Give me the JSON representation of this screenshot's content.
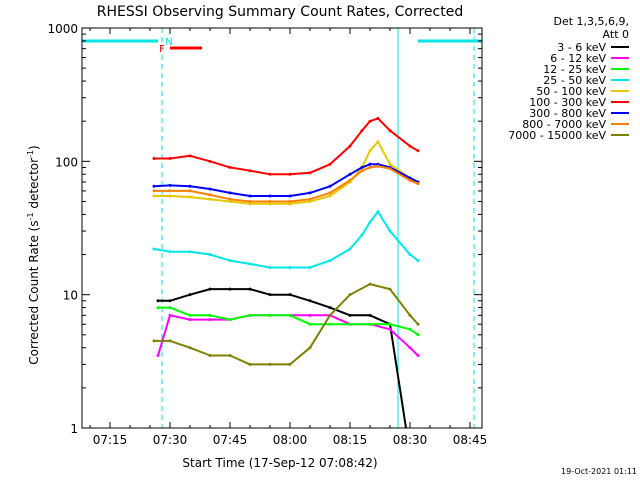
{
  "page": {
    "footer_date": "19-Oct-2021 01:11"
  },
  "chart_data": {
    "type": "line",
    "title": "RHESSI Observing Summary Count Rates, Corrected",
    "xlabel": "Start Time (17-Sep-12 07:08:42)",
    "ylabel_main": "Corrected Count Rate (s",
    "ylabel_sup1": "-1",
    "ylabel_mid": " detector",
    "ylabel_sup2": "-1",
    "ylabel_end": ")",
    "y_scale": "log",
    "ylim": [
      1,
      1000
    ],
    "xlim": [
      "07:08",
      "08:48"
    ],
    "x_ticks": [
      "07:15",
      "07:30",
      "07:45",
      "08:00",
      "08:15",
      "08:30",
      "08:45"
    ],
    "y_ticks": [
      "1",
      "10",
      "100",
      "1000"
    ],
    "legend_header": [
      "Det 1,3,5,6,9,",
      "Att 0"
    ],
    "legend_placement": "right",
    "flags": [
      {
        "label": "N",
        "color": "#00e5e5",
        "segments": [
          [
            "07:08",
            "07:27"
          ],
          [
            "08:32",
            "08:48"
          ]
        ]
      },
      {
        "label": "F",
        "color": "#ff0000",
        "segments": [
          [
            "07:30",
            "07:38"
          ]
        ]
      }
    ],
    "vertical_markers": [
      {
        "time": "07:28",
        "style": "dashed"
      },
      {
        "time": "08:27",
        "style": "solid"
      },
      {
        "time": "08:46",
        "style": "dashed"
      }
    ],
    "series": [
      {
        "name": "3 - 6 keV",
        "color": "#000000",
        "x": [
          "07:27",
          "07:30",
          "07:35",
          "07:40",
          "07:45",
          "07:50",
          "07:55",
          "08:00",
          "08:05",
          "08:10",
          "08:15",
          "08:20",
          "08:25",
          "08:29"
        ],
        "y": [
          9,
          9,
          10,
          11,
          11,
          11,
          10,
          10,
          9,
          8,
          7,
          7,
          6,
          0
        ]
      },
      {
        "name": "6 - 12 keV",
        "color": "#ff00ff",
        "x": [
          "07:27",
          "07:30",
          "07:35",
          "07:40",
          "07:45",
          "07:50",
          "07:55",
          "08:00",
          "08:05",
          "08:10",
          "08:15",
          "08:20",
          "08:25",
          "08:30",
          "08:32"
        ],
        "y": [
          3.5,
          7,
          6.5,
          6.5,
          6.5,
          7,
          7,
          7,
          7,
          7,
          6,
          6,
          5.5,
          4,
          3.5
        ]
      },
      {
        "name": "12 - 25 keV",
        "color": "#00ff00",
        "x": [
          "07:27",
          "07:30",
          "07:35",
          "07:40",
          "07:45",
          "07:50",
          "07:55",
          "08:00",
          "08:05",
          "08:10",
          "08:15",
          "08:20",
          "08:25",
          "08:30",
          "08:32"
        ],
        "y": [
          8,
          8,
          7,
          7,
          6.5,
          7,
          7,
          7,
          6,
          6,
          6,
          6,
          6,
          5.5,
          5
        ]
      },
      {
        "name": "25 - 50 keV",
        "color": "#00e5e5",
        "x": [
          "07:26",
          "07:30",
          "07:35",
          "07:40",
          "07:45",
          "07:50",
          "07:55",
          "08:00",
          "08:05",
          "08:10",
          "08:15",
          "08:18",
          "08:20",
          "08:22",
          "08:25",
          "08:30",
          "08:32"
        ],
        "y": [
          22,
          21,
          21,
          20,
          18,
          17,
          16,
          16,
          16,
          18,
          22,
          28,
          35,
          42,
          30,
          20,
          18
        ]
      },
      {
        "name": "50 - 100 keV",
        "color": "#e5c800",
        "x": [
          "07:26",
          "07:30",
          "07:35",
          "07:40",
          "07:45",
          "07:50",
          "07:55",
          "08:00",
          "08:05",
          "08:10",
          "08:15",
          "08:18",
          "08:20",
          "08:22",
          "08:25",
          "08:30",
          "08:32"
        ],
        "y": [
          55,
          55,
          54,
          52,
          50,
          48,
          48,
          48,
          50,
          55,
          70,
          90,
          120,
          140,
          95,
          75,
          70
        ]
      },
      {
        "name": "100 - 300 keV",
        "color": "#ff0000",
        "x": [
          "07:26",
          "07:30",
          "07:35",
          "07:40",
          "07:45",
          "07:50",
          "07:55",
          "08:00",
          "08:05",
          "08:10",
          "08:15",
          "08:18",
          "08:20",
          "08:22",
          "08:25",
          "08:30",
          "08:32"
        ],
        "y": [
          105,
          105,
          110,
          100,
          90,
          85,
          80,
          80,
          82,
          95,
          130,
          170,
          200,
          210,
          170,
          130,
          120
        ]
      },
      {
        "name": "300 - 800 keV",
        "color": "#0000ff",
        "x": [
          "07:26",
          "07:30",
          "07:35",
          "07:40",
          "07:45",
          "07:50",
          "07:55",
          "08:00",
          "08:05",
          "08:10",
          "08:15",
          "08:18",
          "08:20",
          "08:22",
          "08:25",
          "08:30",
          "08:32"
        ],
        "y": [
          65,
          66,
          65,
          62,
          58,
          55,
          55,
          55,
          58,
          65,
          80,
          90,
          95,
          95,
          90,
          75,
          70
        ]
      },
      {
        "name": "800 - 7000 keV",
        "color": "#ff8000",
        "x": [
          "07:26",
          "07:30",
          "07:35",
          "07:40",
          "07:45",
          "07:50",
          "07:55",
          "08:00",
          "08:05",
          "08:10",
          "08:15",
          "08:18",
          "08:20",
          "08:22",
          "08:25",
          "08:30",
          "08:32"
        ],
        "y": [
          60,
          60,
          60,
          56,
          52,
          50,
          50,
          50,
          52,
          58,
          72,
          85,
          90,
          92,
          88,
          72,
          68
        ]
      },
      {
        "name": "7000 - 15000 keV",
        "color": "#808000",
        "x": [
          "07:26",
          "07:30",
          "07:35",
          "07:40",
          "07:45",
          "07:50",
          "07:55",
          "08:00",
          "08:05",
          "08:10",
          "08:15",
          "08:20",
          "08:25",
          "08:30",
          "08:32"
        ],
        "y": [
          4.5,
          4.5,
          4,
          3.5,
          3.5,
          3,
          3,
          3,
          4,
          7,
          10,
          12,
          11,
          7,
          6
        ]
      }
    ]
  }
}
